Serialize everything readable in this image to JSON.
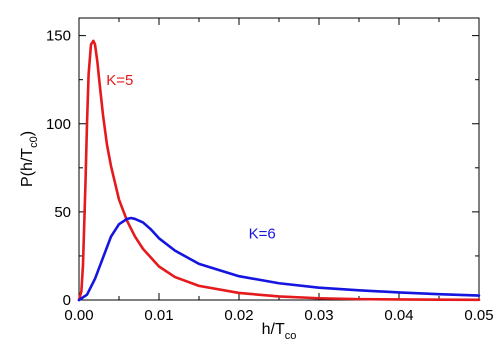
{
  "chart_data": {
    "type": "line",
    "xlabel": {
      "main": "h/T",
      "sub": "co"
    },
    "ylabel": {
      "prefix": "P(h/T",
      "sub": "c0",
      "suffix": ")"
    },
    "xlim": [
      0.0,
      0.05
    ],
    "ylim": [
      0,
      160
    ],
    "x_ticks": [
      "0.00",
      "0.01",
      "0.02",
      "0.03",
      "0.04",
      "0.05"
    ],
    "y_ticks": [
      "0",
      "50",
      "100",
      "150"
    ],
    "grid": false,
    "series": [
      {
        "name": "K=5",
        "color": "#e41a1c",
        "x": [
          0.0,
          0.0003,
          0.0005,
          0.0008,
          0.001,
          0.0012,
          0.0015,
          0.0018,
          0.002,
          0.0023,
          0.0025,
          0.003,
          0.0035,
          0.004,
          0.005,
          0.006,
          0.007,
          0.008,
          0.01,
          0.012,
          0.015,
          0.02,
          0.025,
          0.03,
          0.035,
          0.04,
          0.045,
          0.05
        ],
        "y": [
          0,
          5,
          20,
          65,
          100,
          128,
          145,
          147,
          145,
          135,
          126,
          105,
          88,
          76,
          57,
          45,
          36,
          29,
          19,
          13,
          8,
          4,
          2,
          1,
          0.5,
          0.3,
          0.2,
          0.1
        ]
      },
      {
        "name": "K=6",
        "color": "#1515e0",
        "x": [
          0.0,
          0.001,
          0.002,
          0.003,
          0.004,
          0.005,
          0.006,
          0.0065,
          0.007,
          0.008,
          0.009,
          0.01,
          0.012,
          0.015,
          0.02,
          0.025,
          0.03,
          0.035,
          0.04,
          0.045,
          0.05
        ],
        "y": [
          0,
          3,
          12,
          24,
          36,
          43,
          46,
          46.5,
          46,
          44,
          40,
          35,
          28,
          20.5,
          13.5,
          9.5,
          7,
          5.5,
          4.3,
          3.3,
          2.5
        ]
      }
    ],
    "annotations": [
      {
        "text": "K=5",
        "x": 0.0034,
        "y": 122,
        "color": "#e41a1c"
      },
      {
        "text": "K=6",
        "x": 0.0212,
        "y": 35,
        "color": "#1515e0"
      }
    ]
  }
}
